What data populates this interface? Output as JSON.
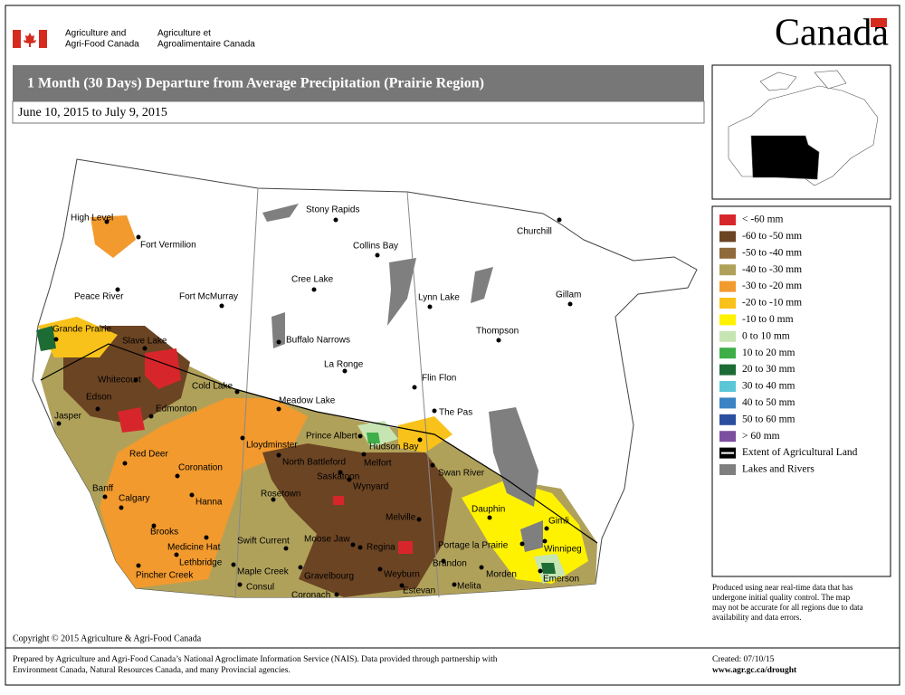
{
  "header": {
    "department_en": [
      "Agriculture and",
      "Agri-Food Canada"
    ],
    "department_fr": [
      "Agriculture et",
      "Agroalimentaire Canada"
    ],
    "wordmark": "Canada"
  },
  "title": "1 Month (30 Days) Departure from Average Precipitation (Prairie Region)",
  "subtitle": "June 10, 2015 to July 9, 2015",
  "legend": {
    "items": [
      {
        "label": "< -60 mm",
        "color": "#d7262b"
      },
      {
        "label": "-60 to -50 mm",
        "color": "#6b4423"
      },
      {
        "label": "-50 to -40 mm",
        "color": "#8f6a3a"
      },
      {
        "label": "-40 to -30 mm",
        "color": "#b0a15a"
      },
      {
        "label": "-30 to -20 mm",
        "color": "#f29a2e"
      },
      {
        "label": "-20 to -10 mm",
        "color": "#f9c21a"
      },
      {
        "label": "-10 to 0 mm",
        "color": "#fff200"
      },
      {
        "label": "0 to 10 mm",
        "color": "#c6e5b3"
      },
      {
        "label": "10 to 20 mm",
        "color": "#3fae49"
      },
      {
        "label": "20 to 30 mm",
        "color": "#1d6b35"
      },
      {
        "label": "30 to 40 mm",
        "color": "#5bc6d8"
      },
      {
        "label": "40 to 50 mm",
        "color": "#3b83c4"
      },
      {
        "label": "50 to 60 mm",
        "color": "#2c4ea0"
      },
      {
        "label": "> 60 mm",
        "color": "#7d4fa0"
      },
      {
        "label": "Extent of Agricultural Land",
        "color": "#000000"
      },
      {
        "label": "Lakes and Rivers",
        "color": "#7f7f7f"
      }
    ]
  },
  "places": [
    "High Level",
    "Fort Vermilion",
    "Peace River",
    "Fort McMurray",
    "Grande Prairie",
    "Slave Lake",
    "Whitecourt",
    "Cold Lake",
    "Edson",
    "Edmonton",
    "Jasper",
    "Lloydminster",
    "Prince Albert",
    "Hudson Bay",
    "North Battleford",
    "Melfort",
    "Red Deer",
    "Coronation",
    "Saskatoon",
    "Swan River",
    "Wynyard",
    "Banff",
    "Calgary",
    "Hanna",
    "Rosetown",
    "Dauphin",
    "Gimli",
    "Melville",
    "Brooks",
    "Medicine Hat",
    "Swift Current",
    "Moose Jaw",
    "Regina",
    "Portage la Prairie",
    "Winnipeg",
    "Lethbridge",
    "Pincher Creek",
    "Maple Creek",
    "Gravelbourg",
    "Weyburn",
    "Brandon",
    "Morden",
    "Emerson",
    "Consul",
    "Melita",
    "Estevan",
    "Coronach",
    "Stony Rapids",
    "Collins Bay",
    "Churchill",
    "Cree Lake",
    "Lynn Lake",
    "Gillam",
    "Thompson",
    "Buffalo Narrows",
    "La Ronge",
    "Flin Flon",
    "The Pas",
    "Meadow Lake"
  ],
  "note": [
    "Produced using near real-time data that has",
    "undergone initial quality control.  The map",
    "may not be accurate for all regions due to data",
    "availability and data errors."
  ],
  "footer": {
    "copyright": "Copyright © 2015 Agriculture & Agri-Food Canada",
    "prepared": [
      "Prepared by Agriculture and Agri-Food Canada’s National Agroclimate Information Service (NAIS).   Data provided through partnership with",
      "Environment Canada, Natural Resources Canada, and many Provincial agencies."
    ],
    "created": "Created: 07/10/15",
    "url": "www.agr.gc.ca/drought"
  }
}
